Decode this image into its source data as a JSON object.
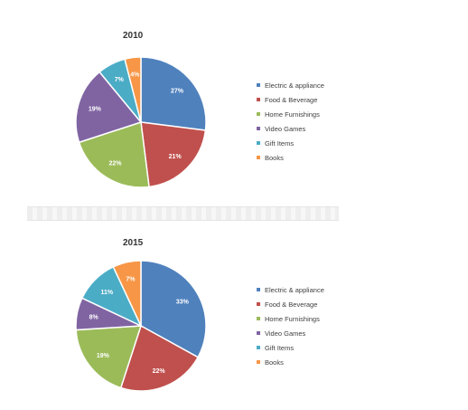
{
  "chart_data": [
    {
      "type": "pie",
      "title": "2010",
      "categories": [
        "Electric & appliance",
        "Food & Beverage",
        "Home Furnishings",
        "Video Games",
        "Gift Items",
        "Books"
      ],
      "values": [
        27,
        21,
        22,
        19,
        7,
        4
      ],
      "labels": [
        "27%",
        "21%",
        "22%",
        "19%",
        "7%",
        "4%"
      ],
      "legend_position": "right"
    },
    {
      "type": "pie",
      "title": "2015",
      "categories": [
        "Electric & appliance",
        "Food & Beverage",
        "Home Furnishings",
        "Video Games",
        "Gift Items",
        "Books"
      ],
      "values": [
        33,
        22,
        19,
        8,
        11,
        7
      ],
      "labels": [
        "33%",
        "22%",
        "19%",
        "8%",
        "11%",
        "7%"
      ],
      "legend_position": "right"
    }
  ],
  "colors": [
    "#4f81bd",
    "#c0504d",
    "#9bbb59",
    "#8064a2",
    "#4bacc6",
    "#f79646"
  ]
}
